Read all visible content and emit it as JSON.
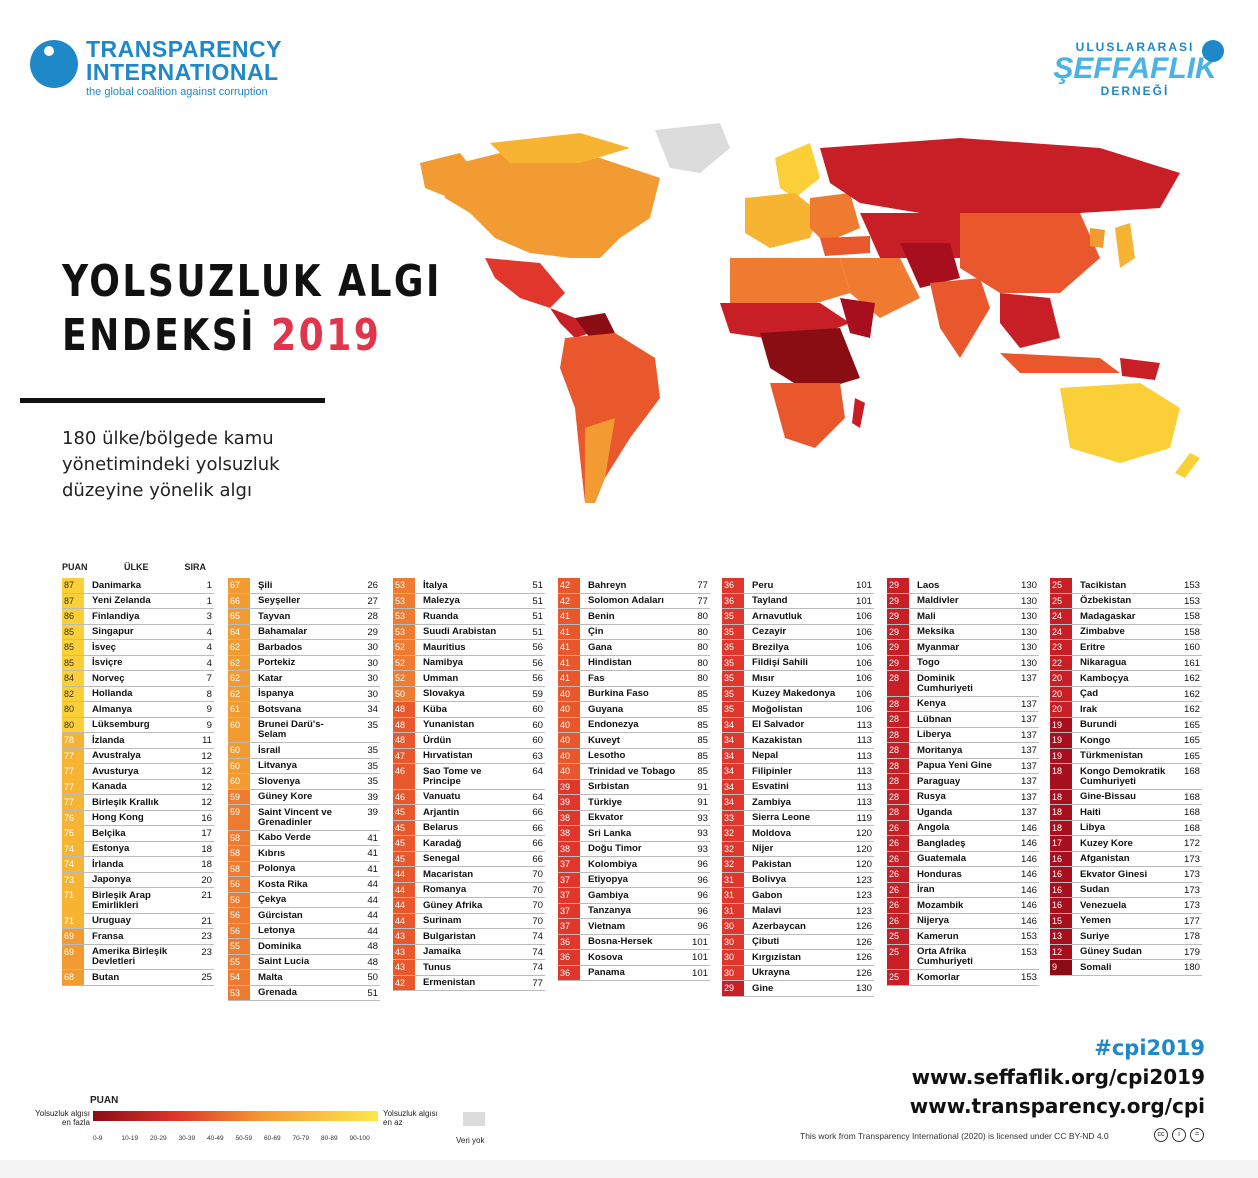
{
  "header": {
    "ti_name": "TRANSPARENCY INTERNATIONAL",
    "ti_tagline": "the global coalition against corruption",
    "sd_top": "ULUSLARARASI",
    "sd_mid": "ŞEFFAFLIK",
    "sd_bot": "DERNEĞİ"
  },
  "title": {
    "line1": "YOLSUZLUK ALGI",
    "line2": "ENDEKSİ",
    "year": "2019",
    "subtitle": "180 ülke/bölgede kamu yönetimindeki yolsuzluk düzeyine yönelik algı"
  },
  "table_headers": {
    "score": "PUAN",
    "country": "ÜLKE",
    "rank": "SIRA"
  },
  "colors": {
    "scale": [
      "#8b0d14",
      "#a80f1e",
      "#c81f26",
      "#e0362c",
      "#e9582c",
      "#ef7b31",
      "#f39b33",
      "#f7b433",
      "#fbcf38",
      "#fde84a"
    ],
    "no_data": "#dcdcdc",
    "accent": "#e0364c",
    "brand": "#1e88c8"
  },
  "chart_data": {
    "type": "table",
    "title": "YOLSUZLUK ALGI ENDEKSİ 2019",
    "columns": [
      "PUAN",
      "ÜLKE",
      "SIRA"
    ],
    "rows": [
      [
        87,
        "Danimarka",
        1
      ],
      [
        87,
        "Yeni Zelanda",
        1
      ],
      [
        86,
        "Finlandiya",
        3
      ],
      [
        85,
        "Singapur",
        4
      ],
      [
        85,
        "İsveç",
        4
      ],
      [
        85,
        "İsviçre",
        4
      ],
      [
        84,
        "Norveç",
        7
      ],
      [
        82,
        "Hollanda",
        8
      ],
      [
        80,
        "Almanya",
        9
      ],
      [
        80,
        "Lüksemburg",
        9
      ],
      [
        78,
        "İzlanda",
        11
      ],
      [
        77,
        "Avustralya",
        12
      ],
      [
        77,
        "Avusturya",
        12
      ],
      [
        77,
        "Kanada",
        12
      ],
      [
        77,
        "Birleşik Krallık",
        12
      ],
      [
        76,
        "Hong Kong",
        16
      ],
      [
        75,
        "Belçika",
        17
      ],
      [
        74,
        "Estonya",
        18
      ],
      [
        74,
        "İrlanda",
        18
      ],
      [
        73,
        "Japonya",
        20
      ],
      [
        71,
        "Birleşik Arap Emirlikleri",
        21
      ],
      [
        71,
        "Uruguay",
        21
      ],
      [
        69,
        "Fransa",
        23
      ],
      [
        69,
        "Amerika Birleşik Devletleri",
        23
      ],
      [
        68,
        "Butan",
        25
      ],
      [
        67,
        "Şili",
        26
      ],
      [
        66,
        "Seyşeller",
        27
      ],
      [
        65,
        "Tayvan",
        28
      ],
      [
        64,
        "Bahamalar",
        29
      ],
      [
        62,
        "Barbados",
        30
      ],
      [
        62,
        "Portekiz",
        30
      ],
      [
        62,
        "Katar",
        30
      ],
      [
        62,
        "İspanya",
        30
      ],
      [
        61,
        "Botsvana",
        34
      ],
      [
        60,
        "Brunei Darü's-Selam",
        35
      ],
      [
        60,
        "İsrail",
        35
      ],
      [
        60,
        "Litvanya",
        35
      ],
      [
        60,
        "Slovenya",
        35
      ],
      [
        59,
        "Güney Kore",
        39
      ],
      [
        59,
        "Saint Vincent ve Grenadinler",
        39
      ],
      [
        58,
        "Kabo Verde",
        41
      ],
      [
        58,
        "Kıbrıs",
        41
      ],
      [
        58,
        "Polonya",
        41
      ],
      [
        56,
        "Kosta Rika",
        44
      ],
      [
        56,
        "Çekya",
        44
      ],
      [
        56,
        "Gürcistan",
        44
      ],
      [
        56,
        "Letonya",
        44
      ],
      [
        55,
        "Dominika",
        48
      ],
      [
        55,
        "Saint Lucia",
        48
      ],
      [
        54,
        "Malta",
        50
      ],
      [
        53,
        "Grenada",
        51
      ],
      [
        53,
        "İtalya",
        51
      ],
      [
        53,
        "Malezya",
        51
      ],
      [
        53,
        "Ruanda",
        51
      ],
      [
        53,
        "Suudi Arabistan",
        51
      ],
      [
        52,
        "Mauritius",
        56
      ],
      [
        52,
        "Namibya",
        56
      ],
      [
        52,
        "Umman",
        56
      ],
      [
        50,
        "Slovakya",
        59
      ],
      [
        48,
        "Küba",
        60
      ],
      [
        48,
        "Yunanistan",
        60
      ],
      [
        48,
        "Ürdün",
        60
      ],
      [
        47,
        "Hırvatistan",
        63
      ],
      [
        46,
        "Sao Tome ve Principe",
        64
      ],
      [
        46,
        "Vanuatu",
        64
      ],
      [
        45,
        "Arjantin",
        66
      ],
      [
        45,
        "Belarus",
        66
      ],
      [
        45,
        "Karadağ",
        66
      ],
      [
        45,
        "Senegal",
        66
      ],
      [
        44,
        "Macaristan",
        70
      ],
      [
        44,
        "Romanya",
        70
      ],
      [
        44,
        "Güney Afrika",
        70
      ],
      [
        44,
        "Surinam",
        70
      ],
      [
        43,
        "Bulgaristan",
        74
      ],
      [
        43,
        "Jamaika",
        74
      ],
      [
        43,
        "Tunus",
        74
      ],
      [
        42,
        "Ermenistan",
        77
      ],
      [
        42,
        "Bahreyn",
        77
      ],
      [
        42,
        "Solomon Adaları",
        77
      ],
      [
        41,
        "Benin",
        80
      ],
      [
        41,
        "Çin",
        80
      ],
      [
        41,
        "Gana",
        80
      ],
      [
        41,
        "Hindistan",
        80
      ],
      [
        41,
        "Fas",
        80
      ],
      [
        40,
        "Burkina Faso",
        85
      ],
      [
        40,
        "Guyana",
        85
      ],
      [
        40,
        "Endonezya",
        85
      ],
      [
        40,
        "Kuveyt",
        85
      ],
      [
        40,
        "Lesotho",
        85
      ],
      [
        40,
        "Trinidad ve Tobago",
        85
      ],
      [
        39,
        "Sırbistan",
        91
      ],
      [
        39,
        "Türkiye",
        91
      ],
      [
        38,
        "Ekvator",
        93
      ],
      [
        38,
        "Sri Lanka",
        93
      ],
      [
        38,
        "Doğu Timor",
        93
      ],
      [
        37,
        "Kolombiya",
        96
      ],
      [
        37,
        "Etiyopya",
        96
      ],
      [
        37,
        "Gambiya",
        96
      ],
      [
        37,
        "Tanzanya",
        96
      ],
      [
        37,
        "Vietnam",
        96
      ],
      [
        36,
        "Bosna-Hersek",
        101
      ],
      [
        36,
        "Kosova",
        101
      ],
      [
        36,
        "Panama",
        101
      ],
      [
        36,
        "Peru",
        101
      ],
      [
        36,
        "Tayland",
        101
      ],
      [
        35,
        "Arnavutluk",
        106
      ],
      [
        35,
        "Cezayir",
        106
      ],
      [
        35,
        "Brezilya",
        106
      ],
      [
        35,
        "Fildişi Sahili",
        106
      ],
      [
        35,
        "Mısır",
        106
      ],
      [
        35,
        "Kuzey Makedonya",
        106
      ],
      [
        35,
        "Moğolistan",
        106
      ],
      [
        34,
        "El Salvador",
        113
      ],
      [
        34,
        "Kazakistan",
        113
      ],
      [
        34,
        "Nepal",
        113
      ],
      [
        34,
        "Filipinler",
        113
      ],
      [
        34,
        "Esvatini",
        113
      ],
      [
        34,
        "Zambiya",
        113
      ],
      [
        33,
        "Sierra Leone",
        119
      ],
      [
        32,
        "Moldova",
        120
      ],
      [
        32,
        "Nijer",
        120
      ],
      [
        32,
        "Pakistan",
        120
      ],
      [
        31,
        "Bolivya",
        123
      ],
      [
        31,
        "Gabon",
        123
      ],
      [
        31,
        "Malavi",
        123
      ],
      [
        30,
        "Azerbaycan",
        126
      ],
      [
        30,
        "Çibuti",
        126
      ],
      [
        30,
        "Kırgızistan",
        126
      ],
      [
        30,
        "Ukrayna",
        126
      ],
      [
        29,
        "Gine",
        130
      ],
      [
        29,
        "Laos",
        130
      ],
      [
        29,
        "Maldivler",
        130
      ],
      [
        29,
        "Mali",
        130
      ],
      [
        29,
        "Meksika",
        130
      ],
      [
        29,
        "Myanmar",
        130
      ],
      [
        29,
        "Togo",
        130
      ],
      [
        28,
        "Dominik Cumhuriyeti",
        137
      ],
      [
        28,
        "Kenya",
        137
      ],
      [
        28,
        "Lübnan",
        137
      ],
      [
        28,
        "Liberya",
        137
      ],
      [
        28,
        "Moritanya",
        137
      ],
      [
        28,
        "Papua Yeni Gine",
        137
      ],
      [
        28,
        "Paraguay",
        137
      ],
      [
        28,
        "Rusya",
        137
      ],
      [
        28,
        "Uganda",
        137
      ],
      [
        26,
        "Angola",
        146
      ],
      [
        26,
        "Bangladeş",
        146
      ],
      [
        26,
        "Guatemala",
        146
      ],
      [
        26,
        "Honduras",
        146
      ],
      [
        26,
        "İran",
        146
      ],
      [
        26,
        "Mozambik",
        146
      ],
      [
        26,
        "Nijerya",
        146
      ],
      [
        25,
        "Kamerun",
        153
      ],
      [
        25,
        "Orta Afrika Cumhuriyeti",
        153
      ],
      [
        25,
        "Komorlar",
        153
      ],
      [
        25,
        "Tacikistan",
        153
      ],
      [
        25,
        "Özbekistan",
        153
      ],
      [
        24,
        "Madagaskar",
        158
      ],
      [
        24,
        "Zimbabve",
        158
      ],
      [
        23,
        "Eritre",
        160
      ],
      [
        22,
        "Nikaragua",
        161
      ],
      [
        20,
        "Kamboçya",
        162
      ],
      [
        20,
        "Çad",
        162
      ],
      [
        20,
        "Irak",
        162
      ],
      [
        19,
        "Burundi",
        165
      ],
      [
        19,
        "Kongo",
        165
      ],
      [
        19,
        "Türkmenistan",
        165
      ],
      [
        18,
        "Kongo Demokratik Cumhuriyeti",
        168
      ],
      [
        18,
        "Gine-Bissau",
        168
      ],
      [
        18,
        "Haiti",
        168
      ],
      [
        18,
        "Libya",
        168
      ],
      [
        17,
        "Kuzey Kore",
        172
      ],
      [
        16,
        "Afganistan",
        173
      ],
      [
        16,
        "Ekvator Ginesi",
        173
      ],
      [
        16,
        "Sudan",
        173
      ],
      [
        16,
        "Venezuela",
        173
      ],
      [
        15,
        "Yemen",
        177
      ],
      [
        13,
        "Suriye",
        178
      ],
      [
        12,
        "Güney Sudan",
        179
      ],
      [
        9,
        "Somali",
        180
      ]
    ],
    "column_breaks": [
      25,
      51,
      77,
      103,
      130,
      155,
      180
    ]
  },
  "legend": {
    "title": "PUAN",
    "left_label": "Yolsuzluk algısı en fazla",
    "right_label": "Yolsuzluk algısı en az",
    "ticks": [
      "0-9",
      "10-19",
      "20-29",
      "30-39",
      "40-49",
      "50-59",
      "60-69",
      "70-79",
      "80-89",
      "90-100"
    ],
    "no_data": "Veri yok"
  },
  "links": {
    "hashtag": "#cpi2019",
    "url1": "www.seffaflik.org/cpi2019",
    "url2": "www.transparency.org/cpi",
    "license": "This work from Transparency International (2020) is licensed under CC BY-ND 4.0"
  }
}
